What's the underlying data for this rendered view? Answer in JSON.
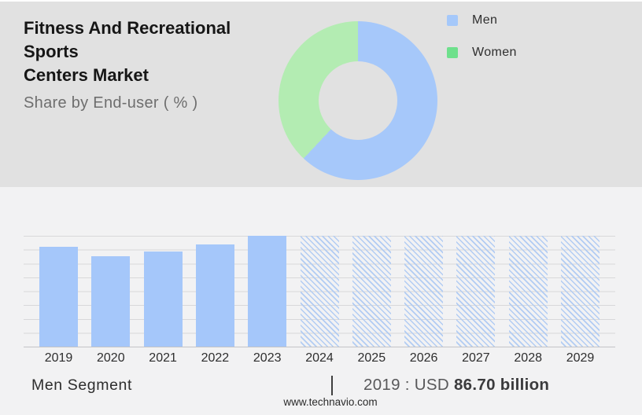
{
  "header": {
    "title_line1": "Fitness And Recreational Sports",
    "title_line2": "Centers Market",
    "subtitle": "Share by End-user ( % )"
  },
  "chart_data": [
    {
      "type": "pie",
      "donut": true,
      "title": "Share by End-user ( % )",
      "labels": [
        "Men",
        "Women"
      ],
      "values_pct": [
        62,
        38
      ],
      "colors": [
        "#A6C8FA",
        "#B3ECB2"
      ],
      "legend_position": "right",
      "legend": [
        {
          "label": "Men",
          "swatch_color": "#A5C8FA"
        },
        {
          "label": "Women",
          "swatch_color": "#6EE08C"
        }
      ]
    },
    {
      "type": "bar",
      "categories": [
        "2019",
        "2020",
        "2021",
        "2022",
        "2023",
        "2024",
        "2025",
        "2026",
        "2027",
        "2028",
        "2029"
      ],
      "values_pct_of_max": [
        90,
        81.5,
        86,
        92.5,
        100,
        100,
        100,
        100,
        100,
        100,
        100
      ],
      "historical_count": 5,
      "forecast_categories": [
        "2024",
        "2025",
        "2026",
        "2027",
        "2028",
        "2029"
      ],
      "forecast_style": "diagonal-hatch",
      "bar_color": "#A5C7FA",
      "hatch_color": "#B2CCF3",
      "grid": true,
      "ylabel": "",
      "xlabel": "",
      "annotation": "2019 : USD 86.70 billion"
    }
  ],
  "footnote": {
    "segment_label": "Men Segment",
    "separator": "|",
    "value_prefix": "2019 : USD",
    "value_bold": "86.70 billion"
  },
  "footer": {
    "url": "www.technavio.com"
  }
}
